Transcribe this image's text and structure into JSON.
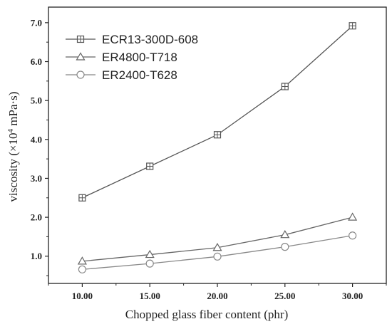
{
  "chart_data": {
    "type": "line",
    "xlabel": "Chopped glass fiber content (phr)",
    "ylabel_pre": "viscosity (×10",
    "ylabel_sup": "4",
    "ylabel_post": " mPa·s)",
    "x": [
      10,
      15,
      20,
      25,
      30
    ],
    "xlim": [
      7.5,
      32.5
    ],
    "ylim": [
      0.3,
      7.4
    ],
    "x_ticks": [
      "10.00",
      "15.00",
      "20.00",
      "25.00",
      "30.00"
    ],
    "x_tick_values": [
      10,
      15,
      20,
      25,
      30
    ],
    "y_ticks": [
      "1.0",
      "2.0",
      "3.0",
      "4.0",
      "5.0",
      "6.0",
      "7.0"
    ],
    "y_tick_values": [
      1,
      2,
      3,
      4,
      5,
      6,
      7
    ],
    "grid": false,
    "legend_position": "top-left",
    "series": [
      {
        "name": "ECR13-300D-608",
        "marker": "square",
        "color": "#555555",
        "values": [
          2.5,
          3.31,
          4.12,
          5.36,
          6.92
        ]
      },
      {
        "name": "ER4800-T718",
        "marker": "triangle",
        "color": "#666666",
        "values": [
          0.87,
          1.04,
          1.22,
          1.55,
          2.0
        ]
      },
      {
        "name": "ER2400-T628",
        "marker": "circle",
        "color": "#888888",
        "values": [
          0.66,
          0.81,
          0.99,
          1.24,
          1.53
        ]
      }
    ]
  }
}
